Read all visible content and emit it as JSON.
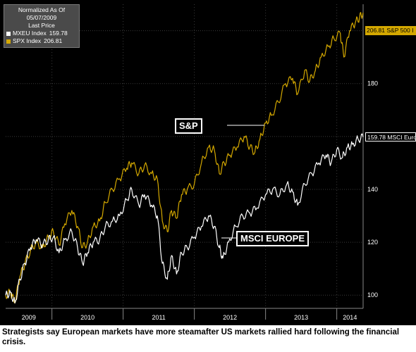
{
  "legend": {
    "title": "Normalized As Of 05/07/2009",
    "subtitle": "Last Price",
    "items": [
      {
        "label": "MXEU Index",
        "value": "159.78",
        "color": "#ffffff"
      },
      {
        "label": "SPX Index",
        "value": "206.81",
        "color": "#d4a800"
      }
    ]
  },
  "callouts": {
    "sp": "S&P",
    "msci": "MSCI EUROPE"
  },
  "value_tags": {
    "spx": "206.81 S&P 500 I",
    "mxeu": "159.78 MSCI Euro"
  },
  "caption": "Strategists say European markets have more steamafter US markets rallied hard following the financial crisis.",
  "colors": {
    "background": "#000000",
    "spx": "#d4a800",
    "mxeu": "#ffffff",
    "grid": "#3a3a3a"
  },
  "chart_data": {
    "type": "line",
    "x_tick_labels": [
      "2009",
      "2010",
      "2011",
      "2012",
      "2013",
      "2014"
    ],
    "x_range": [
      2009.35,
      2014.37
    ],
    "ylim": [
      95,
      210
    ],
    "y_ticks": [
      100,
      120,
      140,
      160,
      180,
      200
    ],
    "grid": true,
    "legend_position": "top-left",
    "series": [
      {
        "name": "SPX Index",
        "color": "#d4a800",
        "points": [
          [
            2009.35,
            100
          ],
          [
            2009.42,
            101
          ],
          [
            2009.48,
            97
          ],
          [
            2009.55,
            107
          ],
          [
            2009.62,
            112
          ],
          [
            2009.7,
            117
          ],
          [
            2009.78,
            120
          ],
          [
            2009.87,
            118
          ],
          [
            2009.95,
            122
          ],
          [
            2010.02,
            124
          ],
          [
            2010.1,
            119
          ],
          [
            2010.18,
            127
          ],
          [
            2010.28,
            132
          ],
          [
            2010.36,
            126
          ],
          [
            2010.43,
            118
          ],
          [
            2010.5,
            120
          ],
          [
            2010.58,
            126
          ],
          [
            2010.67,
            128
          ],
          [
            2010.75,
            135
          ],
          [
            2010.85,
            140
          ],
          [
            2010.95,
            144
          ],
          [
            2011.05,
            148
          ],
          [
            2011.12,
            150
          ],
          [
            2011.22,
            146
          ],
          [
            2011.3,
            149
          ],
          [
            2011.4,
            146
          ],
          [
            2011.48,
            144
          ],
          [
            2011.55,
            128
          ],
          [
            2011.62,
            124
          ],
          [
            2011.68,
            132
          ],
          [
            2011.75,
            129
          ],
          [
            2011.82,
            138
          ],
          [
            2011.9,
            140
          ],
          [
            2012.0,
            142
          ],
          [
            2012.1,
            150
          ],
          [
            2012.2,
            156
          ],
          [
            2012.28,
            155
          ],
          [
            2012.35,
            146
          ],
          [
            2012.42,
            150
          ],
          [
            2012.5,
            153
          ],
          [
            2012.6,
            156
          ],
          [
            2012.7,
            160
          ],
          [
            2012.78,
            156
          ],
          [
            2012.85,
            154
          ],
          [
            2012.92,
            159
          ],
          [
            2013.0,
            165
          ],
          [
            2013.08,
            168
          ],
          [
            2013.18,
            173
          ],
          [
            2013.28,
            180
          ],
          [
            2013.38,
            182
          ],
          [
            2013.45,
            176
          ],
          [
            2013.55,
            185
          ],
          [
            2013.62,
            181
          ],
          [
            2013.7,
            185
          ],
          [
            2013.78,
            190
          ],
          [
            2013.88,
            194
          ],
          [
            2013.96,
            197
          ],
          [
            2014.05,
            199
          ],
          [
            2014.1,
            190
          ],
          [
            2014.18,
            200
          ],
          [
            2014.26,
            203
          ],
          [
            2014.32,
            205
          ],
          [
            2014.37,
            206.81
          ]
        ]
      },
      {
        "name": "MXEU Index",
        "color": "#ffffff",
        "points": [
          [
            2009.35,
            100
          ],
          [
            2009.42,
            101
          ],
          [
            2009.48,
            97
          ],
          [
            2009.55,
            106
          ],
          [
            2009.62,
            112
          ],
          [
            2009.7,
            118
          ],
          [
            2009.78,
            121
          ],
          [
            2009.87,
            119
          ],
          [
            2009.95,
            121
          ],
          [
            2010.02,
            122
          ],
          [
            2010.1,
            116
          ],
          [
            2010.18,
            121
          ],
          [
            2010.28,
            124
          ],
          [
            2010.36,
            118
          ],
          [
            2010.43,
            112
          ],
          [
            2010.5,
            116
          ],
          [
            2010.58,
            120
          ],
          [
            2010.67,
            121
          ],
          [
            2010.75,
            126
          ],
          [
            2010.85,
            128
          ],
          [
            2010.95,
            130
          ],
          [
            2011.05,
            136
          ],
          [
            2011.12,
            140
          ],
          [
            2011.22,
            134
          ],
          [
            2011.3,
            138
          ],
          [
            2011.4,
            134
          ],
          [
            2011.48,
            130
          ],
          [
            2011.55,
            112
          ],
          [
            2011.62,
            106
          ],
          [
            2011.68,
            115
          ],
          [
            2011.75,
            108
          ],
          [
            2011.82,
            116
          ],
          [
            2011.9,
            118
          ],
          [
            2012.0,
            122
          ],
          [
            2012.1,
            126
          ],
          [
            2012.2,
            130
          ],
          [
            2012.28,
            126
          ],
          [
            2012.35,
            118
          ],
          [
            2012.4,
            114
          ],
          [
            2012.48,
            120
          ],
          [
            2012.58,
            126
          ],
          [
            2012.68,
            130
          ],
          [
            2012.78,
            131
          ],
          [
            2012.88,
            133
          ],
          [
            2013.0,
            138
          ],
          [
            2013.1,
            140
          ],
          [
            2013.2,
            138
          ],
          [
            2013.3,
            142
          ],
          [
            2013.38,
            139
          ],
          [
            2013.45,
            134
          ],
          [
            2013.55,
            142
          ],
          [
            2013.65,
            146
          ],
          [
            2013.75,
            150
          ],
          [
            2013.85,
            153
          ],
          [
            2013.92,
            150
          ],
          [
            2014.0,
            155
          ],
          [
            2014.08,
            152
          ],
          [
            2014.15,
            156
          ],
          [
            2014.22,
            157
          ],
          [
            2014.3,
            159
          ],
          [
            2014.37,
            159.78
          ]
        ]
      }
    ]
  }
}
